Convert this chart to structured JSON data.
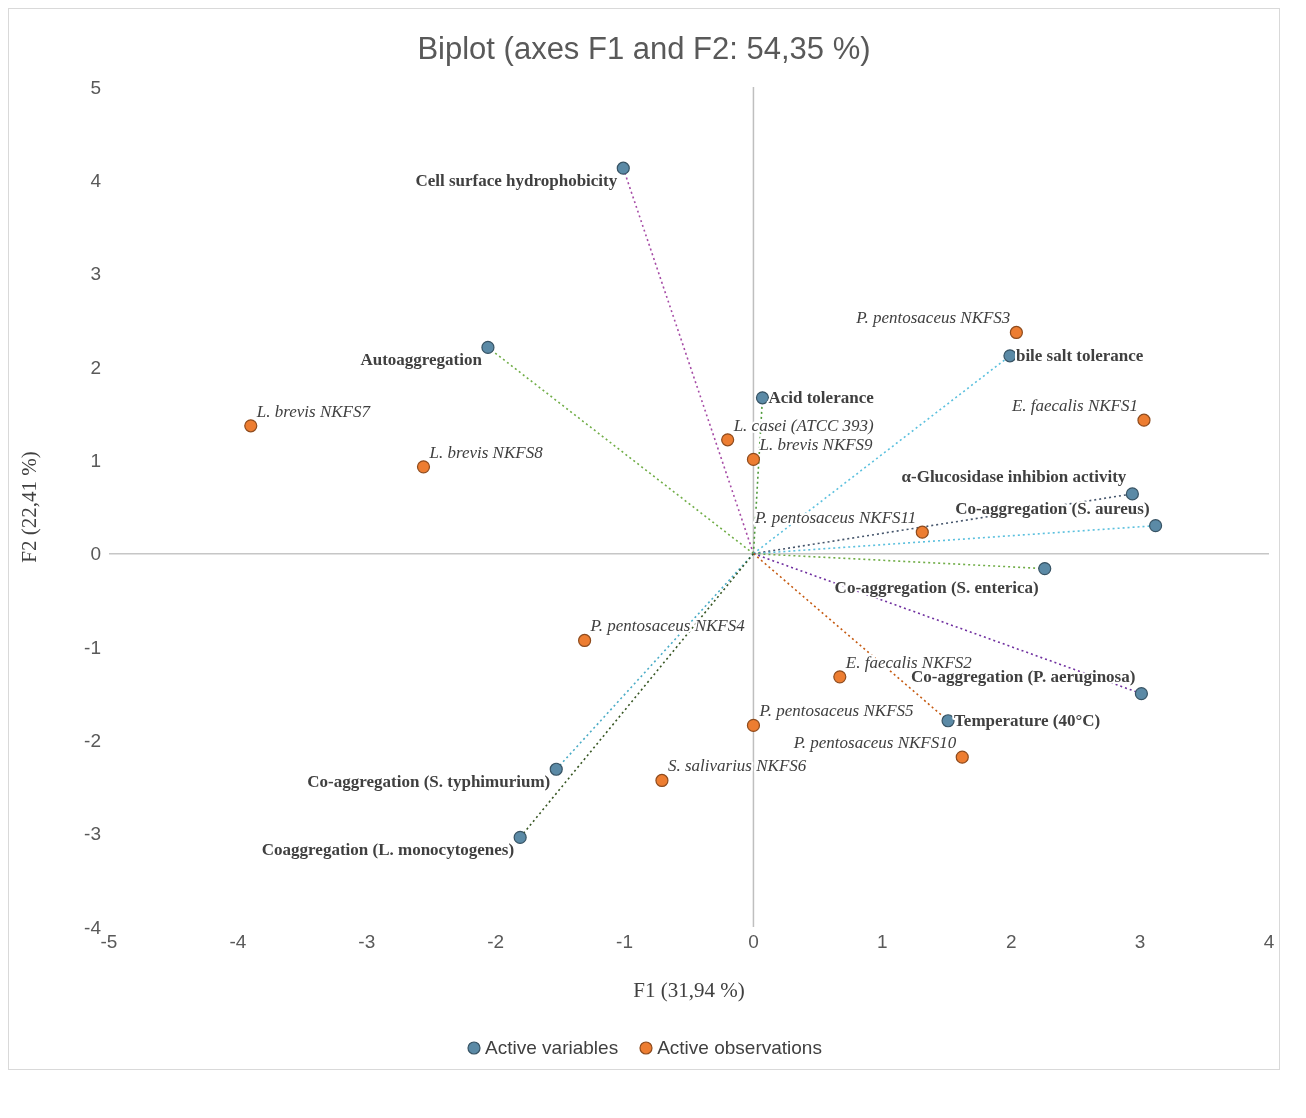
{
  "chart_data": {
    "type": "scatter",
    "title": "Biplot (axes F1 and F2: 54,35 %)",
    "xlabel": "F1 (31,94 %)",
    "ylabel": "F2 (22,41 %)",
    "xlim": [
      -5,
      4
    ],
    "ylim": [
      -4,
      5
    ],
    "xticks": [
      -5,
      -4,
      -3,
      -2,
      -1,
      0,
      1,
      2,
      3,
      4
    ],
    "yticks": [
      -4,
      -3,
      -2,
      -1,
      0,
      1,
      2,
      3,
      4,
      5
    ],
    "grid": false,
    "legend": "bottom",
    "marker": "circle",
    "line_style": "dotted",
    "ref_lines": [
      {
        "axis": "x",
        "value": 0,
        "color": "#bfbfbf"
      },
      {
        "axis": "y",
        "value": 0,
        "color": "#c6c6c6"
      }
    ],
    "series": [
      {
        "type": "line",
        "marker": "none",
        "color": "#a64ca6",
        "x": [
          0,
          -1.01
        ],
        "values": [
          0,
          4.13
        ]
      },
      {
        "type": "line",
        "marker": "none",
        "color": "#70ad47",
        "x": [
          0,
          -2.06
        ],
        "values": [
          0,
          2.21
        ]
      },
      {
        "type": "line",
        "marker": "none",
        "color": "#4e9a3a",
        "x": [
          0,
          0.07
        ],
        "values": [
          0,
          1.67
        ]
      },
      {
        "type": "line",
        "marker": "none",
        "color": "#5bc0de",
        "x": [
          0,
          1.99
        ],
        "values": [
          0,
          2.12
        ]
      },
      {
        "type": "line",
        "marker": "none",
        "color": "#44546a",
        "x": [
          0,
          2.94
        ],
        "values": [
          0,
          0.64
        ]
      },
      {
        "type": "line",
        "marker": "none",
        "color": "#5bc0de",
        "x": [
          0,
          3.12
        ],
        "values": [
          0,
          0.3
        ]
      },
      {
        "type": "line",
        "marker": "none",
        "color": "#70ad47",
        "x": [
          0,
          2.26
        ],
        "values": [
          0,
          -0.16
        ]
      },
      {
        "type": "line",
        "marker": "none",
        "color": "#7030a0",
        "x": [
          0,
          3.01
        ],
        "values": [
          0,
          -1.5
        ]
      },
      {
        "type": "line",
        "marker": "none",
        "color": "#c55a11",
        "x": [
          0,
          1.51
        ],
        "values": [
          0,
          -1.79
        ]
      },
      {
        "type": "line",
        "marker": "none",
        "color": "#4bacc6",
        "x": [
          0,
          -1.53
        ],
        "values": [
          0,
          -2.31
        ]
      },
      {
        "type": "line",
        "marker": "none",
        "color": "#375623",
        "x": [
          0,
          -1.81
        ],
        "values": [
          0,
          -3.04
        ]
      },
      {
        "name": "Active variables",
        "color": "#5b8aa6",
        "x": [
          -1.01,
          -2.06,
          0.07,
          1.99,
          2.94,
          3.12,
          2.26,
          3.01,
          1.51,
          -1.53,
          -1.81
        ],
        "values": [
          4.13,
          2.21,
          1.67,
          2.12,
          0.64,
          0.3,
          -0.16,
          -1.5,
          -1.79,
          -2.31,
          -3.04
        ]
      },
      {
        "name": "Active observations",
        "color": "#ed7d31",
        "x": [
          2.04,
          3.03,
          -3.9,
          -2.56,
          -0.2,
          0,
          1.31,
          -1.31,
          0.67,
          0,
          1.62,
          -0.71
        ],
        "values": [
          2.37,
          1.43,
          1.37,
          0.93,
          1.22,
          1.01,
          0.23,
          -0.93,
          -1.32,
          -1.84,
          -2.18,
          -2.43
        ]
      }
    ],
    "annotations": [
      {
        "text": "Cell surface hydrophobicity",
        "x": -1.01,
        "y": 4.13
      },
      {
        "text": "Autoaggregation",
        "x": -2.06,
        "y": 2.21
      },
      {
        "text": "Acid tolerance",
        "x": 0.07,
        "y": 1.67
      },
      {
        "text": "bile salt tolerance",
        "x": 1.99,
        "y": 2.12
      },
      {
        "text": "α-Glucosidase inhibion activity",
        "x": 2.94,
        "y": 0.64
      },
      {
        "text": "Co-aggregation (S. aureus)",
        "x": 3.12,
        "y": 0.3
      },
      {
        "text": "Co-aggregation (S. enterica)",
        "x": 2.26,
        "y": -0.16
      },
      {
        "text": "Co-aggregation (P. aeruginosa)",
        "x": 3.01,
        "y": -1.5
      },
      {
        "text": "Temperature (40°C)",
        "x": 1.51,
        "y": -1.79
      },
      {
        "text": "Co-aggregation (S. typhimurium)",
        "x": -1.53,
        "y": -2.31
      },
      {
        "text": "Coaggregation (L. monocytogenes)",
        "x": -1.81,
        "y": -3.04
      },
      {
        "text": "P. pentosaceus NKFS3",
        "x": 2.04,
        "y": 2.37
      },
      {
        "text": "E. faecalis NKFS1",
        "x": 3.03,
        "y": 1.43
      },
      {
        "text": "L. brevis NKFS7",
        "x": -3.9,
        "y": 1.37
      },
      {
        "text": "L. brevis NKFS8",
        "x": -2.56,
        "y": 0.93
      },
      {
        "text": "L. casei (ATCC 393)",
        "x": -0.2,
        "y": 1.22
      },
      {
        "text": "L. brevis NKFS9",
        "x": 0,
        "y": 1.01
      },
      {
        "text": "P. pentosaceus NKFS11",
        "x": 1.31,
        "y": 0.23
      },
      {
        "text": "P. pentosaceus NKFS4",
        "x": -1.31,
        "y": -0.93
      },
      {
        "text": "E. faecalis NKFS2",
        "x": 0.67,
        "y": -1.32
      },
      {
        "text": "P. pentosaceus NKFS5",
        "x": 0,
        "y": -1.84
      },
      {
        "text": "P. pentosaceus NKFS10",
        "x": 1.62,
        "y": -2.18
      },
      {
        "text": "S. salivarius NKFS6",
        "x": -0.71,
        "y": -2.43
      }
    ]
  }
}
